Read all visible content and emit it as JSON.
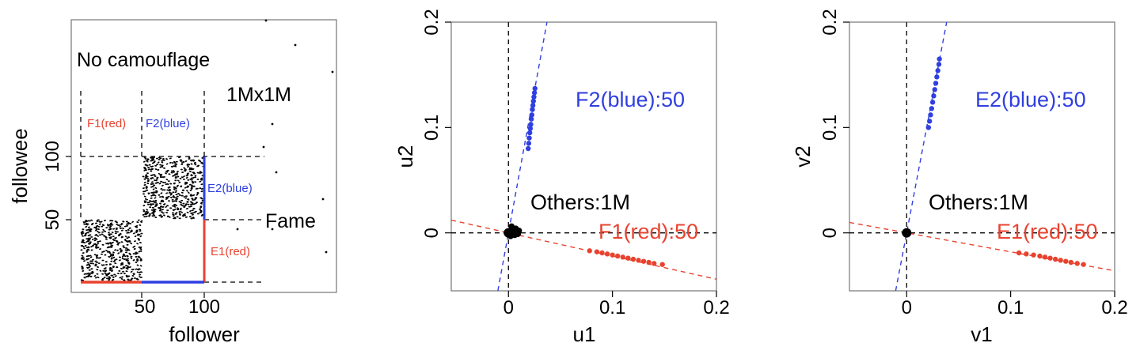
{
  "colors": {
    "red": "#e8432f",
    "blue": "#2f3fe0",
    "black": "#000000",
    "frame": "#7f7f7f"
  },
  "chart_data": [
    {
      "type": "heatmap",
      "title": "",
      "xlabel": "follower",
      "ylabel": "followee",
      "x_ticks": [
        "50",
        "100"
      ],
      "y_ticks": [
        "50",
        "100"
      ],
      "annotations": {
        "no_camouflage": "No camouflage",
        "size": "1Mx1M",
        "fame": "Fame",
        "f1": "F1(red)",
        "f2": "F2(blue)",
        "e1": "E1(red)",
        "e2": "E2(blue)"
      },
      "blocks": [
        {
          "rows": [
            0,
            50
          ],
          "cols": [
            0,
            50
          ]
        },
        {
          "rows": [
            50,
            100
          ],
          "cols": [
            50,
            100
          ]
        }
      ]
    },
    {
      "type": "scatter",
      "xlabel": "u1",
      "ylabel": "u2",
      "xlim": [
        -0.055,
        0.2
      ],
      "ylim": [
        -0.055,
        0.2
      ],
      "x_ticks": [
        "0",
        "0.1",
        "0.2"
      ],
      "y_ticks": [
        "0",
        "0.1",
        "0.2"
      ],
      "labels": {
        "blue": "F2(blue):50",
        "red": "F1(red):50",
        "others": "Others:1M"
      },
      "blue_points": [
        [
          0.019,
          0.08
        ],
        [
          0.0195,
          0.085
        ],
        [
          0.02,
          0.09
        ],
        [
          0.0205,
          0.095
        ],
        [
          0.021,
          0.099
        ],
        [
          0.0215,
          0.103
        ],
        [
          0.022,
          0.108
        ],
        [
          0.0225,
          0.112
        ],
        [
          0.023,
          0.117
        ],
        [
          0.0235,
          0.121
        ],
        [
          0.024,
          0.125
        ],
        [
          0.0245,
          0.129
        ],
        [
          0.025,
          0.133
        ],
        [
          0.0255,
          0.137
        ]
      ],
      "red_points": [
        [
          0.078,
          -0.017
        ],
        [
          0.085,
          -0.018
        ],
        [
          0.09,
          -0.019
        ],
        [
          0.095,
          -0.02
        ],
        [
          0.1,
          -0.021
        ],
        [
          0.105,
          -0.022
        ],
        [
          0.11,
          -0.023
        ],
        [
          0.115,
          -0.024
        ],
        [
          0.12,
          -0.025
        ],
        [
          0.125,
          -0.026
        ],
        [
          0.13,
          -0.027
        ],
        [
          0.135,
          -0.028
        ],
        [
          0.14,
          -0.029
        ],
        [
          0.148,
          -0.03
        ]
      ],
      "black_points": [
        [
          0.0,
          0.0
        ],
        [
          0.004,
          0.002
        ],
        [
          0.007,
          0.004
        ],
        [
          0.009,
          -0.001
        ],
        [
          0.003,
          0.006
        ],
        [
          0.006,
          -0.002
        ],
        [
          0.01,
          0.002
        ],
        [
          0.002,
          -0.003
        ]
      ],
      "blue_line_slope": 5.4,
      "red_line_slope": -0.22
    },
    {
      "type": "scatter",
      "xlabel": "v1",
      "ylabel": "v2",
      "xlim": [
        -0.055,
        0.2
      ],
      "ylim": [
        -0.055,
        0.2
      ],
      "x_ticks": [
        "0",
        "0.1",
        "0.2"
      ],
      "y_ticks": [
        "0",
        "0.1",
        "0.2"
      ],
      "labels": {
        "blue": "E2(blue):50",
        "red": "E1(red):50",
        "others": "Others:1M"
      },
      "blue_points": [
        [
          0.021,
          0.1
        ],
        [
          0.022,
          0.106
        ],
        [
          0.023,
          0.112
        ],
        [
          0.024,
          0.118
        ],
        [
          0.025,
          0.124
        ],
        [
          0.026,
          0.13
        ],
        [
          0.027,
          0.136
        ],
        [
          0.028,
          0.142
        ],
        [
          0.029,
          0.148
        ],
        [
          0.03,
          0.154
        ],
        [
          0.031,
          0.16
        ],
        [
          0.0315,
          0.165
        ]
      ],
      "red_points": [
        [
          0.108,
          -0.019
        ],
        [
          0.115,
          -0.02
        ],
        [
          0.122,
          -0.021
        ],
        [
          0.128,
          -0.022
        ],
        [
          0.133,
          -0.023
        ],
        [
          0.138,
          -0.024
        ],
        [
          0.143,
          -0.025
        ],
        [
          0.148,
          -0.026
        ],
        [
          0.153,
          -0.027
        ],
        [
          0.158,
          -0.028
        ],
        [
          0.164,
          -0.029
        ],
        [
          0.17,
          -0.03
        ]
      ],
      "black_points": [
        [
          0.0,
          0.0
        ],
        [
          0.001,
          0.001
        ],
        [
          -0.001,
          -0.001
        ]
      ],
      "blue_line_slope": 5.2,
      "red_line_slope": -0.18
    }
  ]
}
